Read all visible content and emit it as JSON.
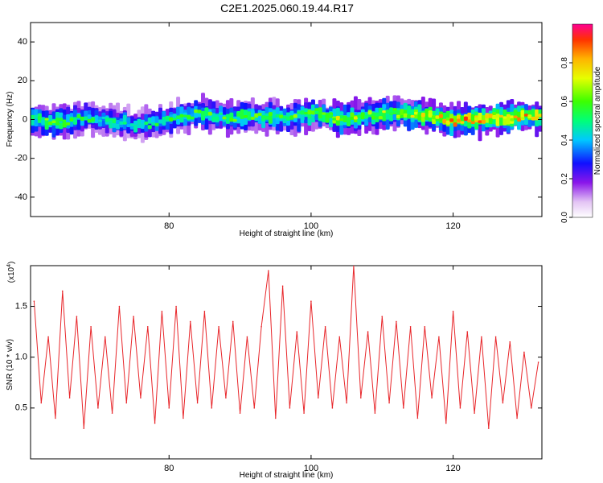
{
  "title": "C2E1.2025.060.19.44.R17",
  "chart_data": [
    {
      "type": "heatmap",
      "xlabel": "Height of straight line (km)",
      "ylabel": "Frequency (Hz)",
      "xlim": [
        60.5,
        132.5
      ],
      "ylim": [
        -50,
        50
      ],
      "xticks": [
        80,
        100,
        120
      ],
      "yticks": [
        -40,
        -20,
        0,
        20,
        40
      ],
      "grid": false,
      "ridge": {
        "description": "Amplitude concentrated in a band near 0 Hz spanning the full height range",
        "x": [
          61,
          64,
          68,
          72,
          76,
          80,
          84,
          88,
          92,
          96,
          100,
          104,
          108,
          112,
          116,
          120,
          124,
          128,
          132
        ],
        "freq_center": [
          0,
          -2,
          1,
          -1,
          -3,
          0,
          3,
          1,
          2,
          1,
          3,
          0,
          2,
          3,
          2,
          -1,
          0,
          1,
          2
        ],
        "peak_amplitude": [
          0.6,
          0.65,
          0.55,
          0.5,
          0.5,
          0.55,
          0.6,
          0.6,
          0.6,
          0.6,
          0.65,
          0.75,
          0.65,
          0.7,
          0.75,
          0.85,
          0.9,
          0.85,
          0.8
        ]
      },
      "colorbar": {
        "label": "Normalized spectral amplitude",
        "range": [
          0,
          1
        ],
        "ticks": [
          0.0,
          0.2,
          0.4,
          0.6,
          0.8
        ]
      }
    },
    {
      "type": "line",
      "xlabel": "Height of straight line (km)",
      "ylabel": "SNR (10 * v/v)",
      "scale_label": "(x10",
      "scale_exponent": "4",
      "scale_suffix": ")",
      "xlim": [
        60.5,
        132.5
      ],
      "ylim": [
        0,
        1.9
      ],
      "xticks": [
        80,
        100,
        120
      ],
      "yticks": [
        0.5,
        1.0,
        1.5
      ],
      "color": "#e8262a",
      "series": [
        {
          "description": "Noisy SNR trace, values in units of 10^4",
          "x": [
            61,
            62,
            63,
            64,
            65,
            66,
            67,
            68,
            69,
            70,
            71,
            72,
            73,
            74,
            75,
            76,
            77,
            78,
            79,
            80,
            81,
            82,
            83,
            84,
            85,
            86,
            87,
            88,
            89,
            90,
            91,
            92,
            93,
            94,
            95,
            96,
            97,
            98,
            99,
            100,
            101,
            102,
            103,
            104,
            105,
            106,
            107,
            108,
            109,
            110,
            111,
            112,
            113,
            114,
            115,
            116,
            117,
            118,
            119,
            120,
            121,
            122,
            123,
            124,
            125,
            126,
            127,
            128,
            129,
            130,
            131,
            132
          ],
          "values": [
            1.55,
            0.55,
            1.2,
            0.4,
            1.65,
            0.6,
            1.4,
            0.3,
            1.3,
            0.5,
            1.2,
            0.45,
            1.5,
            0.55,
            1.4,
            0.6,
            1.3,
            0.35,
            1.45,
            0.5,
            1.5,
            0.4,
            1.35,
            0.55,
            1.45,
            0.5,
            1.3,
            0.6,
            1.35,
            0.45,
            1.2,
            0.5,
            1.3,
            1.85,
            0.4,
            1.7,
            0.5,
            1.25,
            0.45,
            1.55,
            0.6,
            1.3,
            0.5,
            1.2,
            0.55,
            1.9,
            0.6,
            1.25,
            0.45,
            1.4,
            0.55,
            1.35,
            0.5,
            1.3,
            0.4,
            1.3,
            0.6,
            1.2,
            0.35,
            1.45,
            0.5,
            1.25,
            0.45,
            1.2,
            0.3,
            1.2,
            0.55,
            1.15,
            0.4,
            1.05,
            0.5,
            0.95
          ]
        }
      ]
    }
  ]
}
